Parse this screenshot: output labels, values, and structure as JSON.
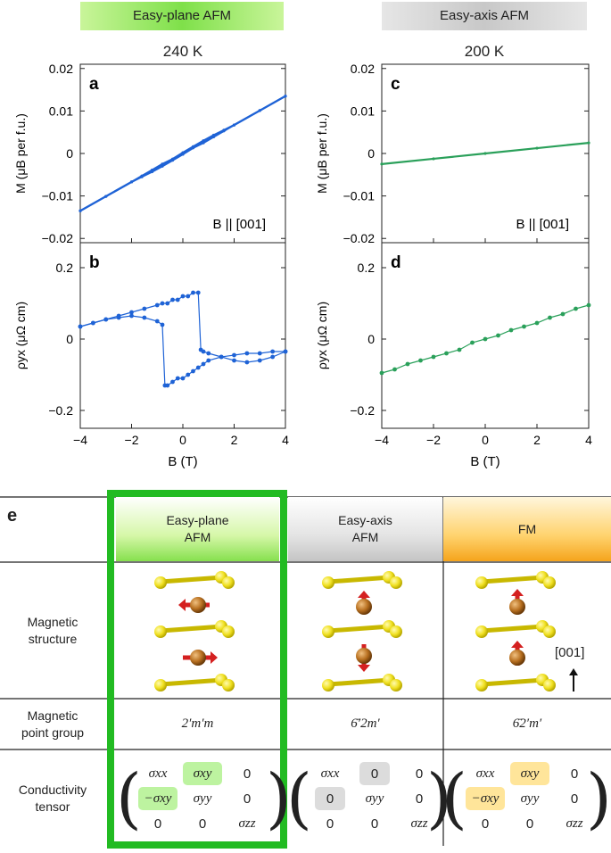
{
  "headers": {
    "left": "Easy-plane AFM",
    "right": "Easy-axis AFM",
    "left_temp": "240 K",
    "right_temp": "200 K",
    "left_color": "#7fe04a",
    "right_color": "#c8c8c8"
  },
  "chart_data": [
    {
      "panel": "a",
      "type": "line",
      "ylabel": "M (μB per f.u.)",
      "xlabel": "",
      "annotation": "B || [001]",
      "xlim": [
        -4,
        4
      ],
      "ylim": [
        -0.021,
        0.021
      ],
      "yticks": [
        "0.02",
        "0.01",
        "0",
        "-0.01",
        "-0.02"
      ],
      "ytick_values": [
        0.02,
        0.01,
        0,
        -0.01,
        -0.02
      ],
      "color": "#1f63d6",
      "series": [
        {
          "x": [
            -4,
            -3,
            -2,
            -1.6,
            -1.2,
            -0.8,
            -0.4,
            0,
            0.4,
            0.8,
            1.2,
            1.6,
            2,
            3,
            4
          ],
          "y": [
            -0.0135,
            -0.0101,
            -0.0067,
            -0.0053,
            -0.0039,
            -0.0025,
            -0.0013,
            0.0002,
            0.0016,
            0.003,
            0.0043,
            0.0055,
            0.0067,
            0.0101,
            0.0135
          ]
        },
        {
          "x": [
            -4,
            -3,
            -2,
            -1.6,
            -1.2,
            -0.8,
            -0.4,
            0,
            0.4,
            0.8,
            1.2,
            1.6,
            2,
            3,
            4
          ],
          "y": [
            -0.0135,
            -0.0101,
            -0.0067,
            -0.0055,
            -0.0043,
            -0.003,
            -0.0016,
            -0.0002,
            0.0013,
            0.0025,
            0.0039,
            0.0053,
            0.0067,
            0.0101,
            0.0135
          ]
        }
      ]
    },
    {
      "panel": "b",
      "type": "scatter",
      "ylabel": "ρyx (μΩ cm)",
      "xlabel": "B (T)",
      "xlim": [
        -4,
        4
      ],
      "ylim": [
        -0.25,
        0.27
      ],
      "yticks": [
        "0.2",
        "0",
        "-0.2"
      ],
      "ytick_values": [
        0.2,
        0,
        -0.2
      ],
      "xticks": [
        "-4",
        "-2",
        "0",
        "2",
        "4"
      ],
      "color": "#1f63d6",
      "series": [
        {
          "x": [
            -4,
            -3.5,
            -3,
            -2.5,
            -2,
            -1.5,
            -1,
            -0.8,
            -0.6,
            -0.4,
            -0.2,
            0,
            0.2,
            0.4,
            0.6,
            0.7,
            0.8,
            1,
            1.5,
            2,
            2.5,
            3,
            3.5,
            4
          ],
          "y": [
            0.035,
            0.045,
            0.055,
            0.065,
            0.075,
            0.085,
            0.095,
            0.1,
            0.1,
            0.11,
            0.11,
            0.12,
            0.12,
            0.13,
            0.13,
            -0.03,
            -0.035,
            -0.04,
            -0.05,
            -0.06,
            -0.065,
            -0.06,
            -0.05,
            -0.035
          ]
        },
        {
          "x": [
            -4,
            -3.5,
            -3,
            -2.5,
            -2,
            -1.5,
            -1,
            -0.8,
            -0.7,
            -0.6,
            -0.4,
            -0.2,
            0,
            0.2,
            0.4,
            0.6,
            0.8,
            1,
            1.5,
            2,
            2.5,
            3,
            3.5,
            4
          ],
          "y": [
            0.035,
            0.045,
            0.055,
            0.06,
            0.065,
            0.06,
            0.05,
            0.04,
            -0.13,
            -0.13,
            -0.12,
            -0.11,
            -0.11,
            -0.1,
            -0.09,
            -0.08,
            -0.07,
            -0.06,
            -0.05,
            -0.045,
            -0.04,
            -0.04,
            -0.035,
            -0.035
          ]
        }
      ]
    },
    {
      "panel": "c",
      "type": "line",
      "ylabel": "M (μB per f.u.)",
      "xlabel": "",
      "annotation": "B || [001]",
      "xlim": [
        -4,
        4
      ],
      "ylim": [
        -0.021,
        0.021
      ],
      "yticks": [
        "0.02",
        "0.01",
        "0",
        "-0.01",
        "-0.02"
      ],
      "ytick_values": [
        0.02,
        0.01,
        0,
        -0.01,
        -0.02
      ],
      "color": "#2aa05a",
      "series": [
        {
          "x": [
            -4,
            -2,
            0,
            2,
            4
          ],
          "y": [
            -0.0025,
            -0.00125,
            0,
            0.00125,
            0.0025
          ]
        }
      ]
    },
    {
      "panel": "d",
      "type": "scatter",
      "ylabel": "ρyx (μΩ cm)",
      "xlabel": "B (T)",
      "xlim": [
        -4,
        4
      ],
      "ylim": [
        -0.25,
        0.27
      ],
      "yticks": [
        "0.2",
        "0",
        "-0.2"
      ],
      "ytick_values": [
        0.2,
        0,
        -0.2
      ],
      "xticks": [
        "-4",
        "-2",
        "0",
        "2",
        "4"
      ],
      "color": "#2aa05a",
      "series": [
        {
          "x": [
            -4,
            -3.5,
            -3,
            -2.5,
            -2,
            -1.5,
            -1,
            -0.5,
            0,
            0.5,
            1,
            1.5,
            2,
            2.5,
            3,
            3.5,
            4
          ],
          "y": [
            -0.095,
            -0.085,
            -0.07,
            -0.06,
            -0.05,
            -0.04,
            -0.03,
            -0.01,
            0,
            0.01,
            0.025,
            0.035,
            0.045,
            0.06,
            0.07,
            0.085,
            0.095
          ]
        }
      ]
    }
  ],
  "table": {
    "panel_label": "e",
    "columns": [
      {
        "line1": "Easy-plane",
        "line2": "AFM"
      },
      {
        "line1": "Easy-axis",
        "line2": "AFM"
      },
      {
        "line1": "FM",
        "line2": ""
      }
    ],
    "row_labels": {
      "structure": {
        "line1": "Magnetic",
        "line2": "structure"
      },
      "point_group": {
        "line1": "Magnetic",
        "line2": "point group"
      },
      "tensor": {
        "line1": "Conductivity",
        "line2": "tensor"
      }
    },
    "point_groups": [
      "2′m′m",
      "6̄′2m′",
      "6̄2′m′"
    ],
    "direction_label": "[001]",
    "tensors": [
      [
        [
          "σxx",
          "σxy",
          "0"
        ],
        [
          "−σxy",
          "σyy",
          "0"
        ],
        [
          "0",
          "0",
          "σzz"
        ]
      ],
      [
        [
          "σxx",
          "0",
          "0"
        ],
        [
          "0",
          "σyy",
          "0"
        ],
        [
          "0",
          "0",
          "σzz"
        ]
      ],
      [
        [
          "σxx",
          "σxy",
          "0"
        ],
        [
          "−σxy",
          "σyy",
          "0"
        ],
        [
          "0",
          "0",
          "σzz"
        ]
      ]
    ],
    "highlight_color_green": "#22bb22",
    "highlight_color_yellow": "#ffe59a",
    "highlight_color_gray": "#dcdcdc"
  }
}
